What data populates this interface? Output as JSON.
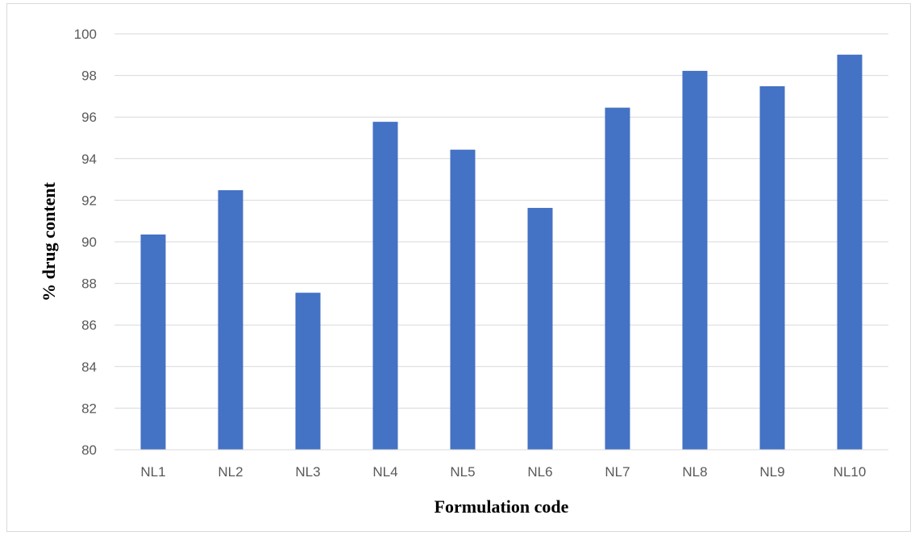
{
  "chart_data": {
    "type": "bar",
    "title": "",
    "xlabel": "Formulation code",
    "ylabel": "% drug content",
    "categories": [
      "NL1",
      "NL2",
      "NL3",
      "NL4",
      "NL5",
      "NL6",
      "NL7",
      "NL8",
      "NL9",
      "NL10"
    ],
    "values": [
      90.35,
      92.48,
      87.55,
      95.77,
      94.43,
      91.63,
      96.45,
      98.22,
      97.48,
      99.0
    ],
    "ylim": [
      80,
      100
    ],
    "yticks": [
      "80",
      "82",
      "84",
      "86",
      "88",
      "90",
      "92",
      "94",
      "96",
      "98",
      "100"
    ],
    "grid": true,
    "legend": "none",
    "bar_color": "#4472C4",
    "grid_color": "#d9d9d9"
  }
}
